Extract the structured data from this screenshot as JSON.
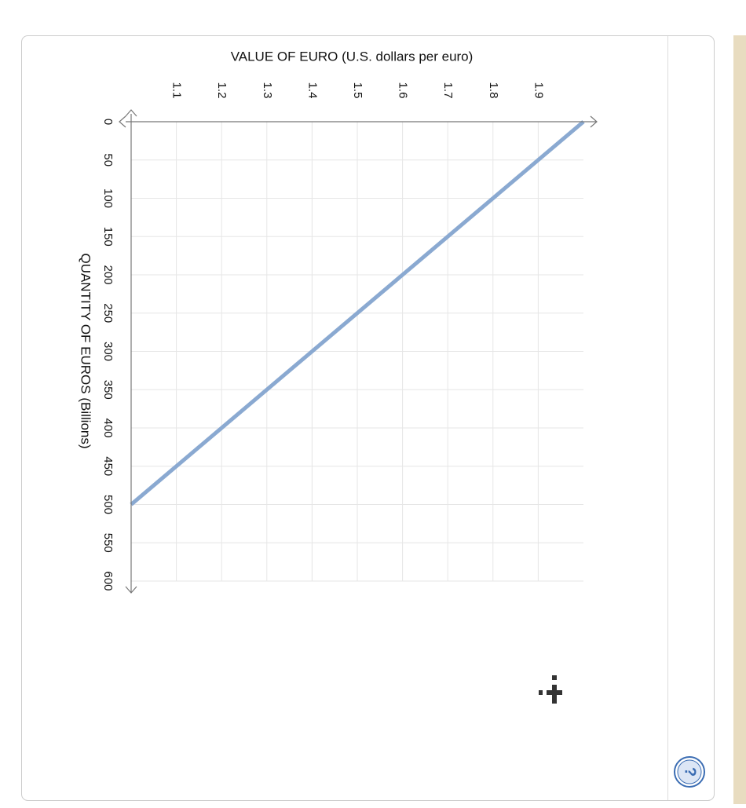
{
  "chart_data": {
    "type": "line",
    "title": "VALUE OF EURO (U.S. dollars per euro)",
    "x_label": "QUANTITY OF EUROS (Billions)",
    "x": [
      0,
      500
    ],
    "values": [
      2.0,
      1.0
    ],
    "color": "#8aa9d1",
    "xlim": [
      0,
      600
    ],
    "xticks": [
      0,
      50,
      100,
      150,
      200,
      250,
      300,
      350,
      400,
      450,
      500,
      550,
      600
    ],
    "ylim": [
      1.0,
      2.0
    ],
    "yticks": [
      1.1,
      1.2,
      1.3,
      1.4,
      1.5,
      1.6,
      1.7,
      1.8,
      1.9
    ],
    "grid": true
  }
}
